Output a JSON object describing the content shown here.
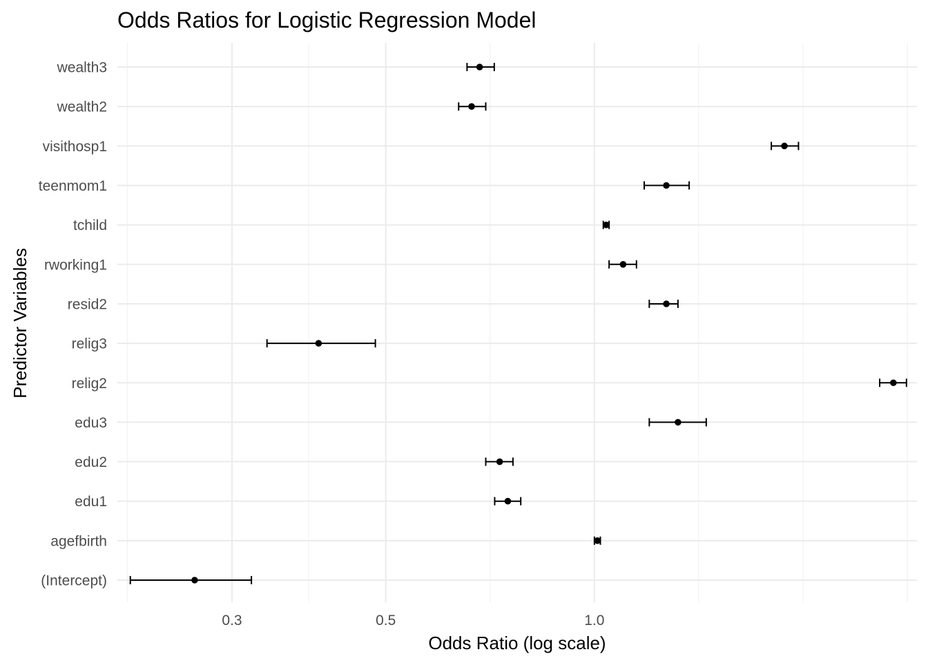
{
  "chart_data": {
    "type": "scatter",
    "title": "Odds Ratios for Logistic Regression Model",
    "xlabel": "Odds Ratio (log scale)",
    "ylabel": "Predictor Variables",
    "x_scale": "log",
    "xlim": [
      0.205,
      2.92
    ],
    "x_major_ticks": [
      0.3,
      0.5,
      1.0
    ],
    "x_tick_labels": [
      "0.3",
      "0.5",
      "1.0"
    ],
    "x_minor_ticks": [
      0.212,
      0.387,
      0.707,
      1.414,
      2.0,
      2.828
    ],
    "grid": true,
    "categories": [
      "(Intercept)",
      "agefbirth",
      "edu1",
      "edu2",
      "edu3",
      "relig2",
      "relig3",
      "resid2",
      "rworking1",
      "tchild",
      "teenmom1",
      "visithosp1",
      "wealth2",
      "wealth3"
    ],
    "series": [
      {
        "estimate": [
          0.265,
          1.01,
          0.75,
          0.73,
          1.32,
          2.7,
          0.4,
          1.27,
          1.1,
          1.04,
          1.27,
          1.88,
          0.665,
          0.683
        ],
        "ci_low": [
          0.214,
          1.0,
          0.718,
          0.697,
          1.2,
          2.58,
          0.337,
          1.2,
          1.05,
          1.03,
          1.18,
          1.8,
          0.637,
          0.655
        ],
        "ci_high": [
          0.32,
          1.02,
          0.783,
          0.763,
          1.45,
          2.82,
          0.483,
          1.32,
          1.15,
          1.05,
          1.37,
          1.97,
          0.697,
          0.717
        ]
      }
    ]
  }
}
